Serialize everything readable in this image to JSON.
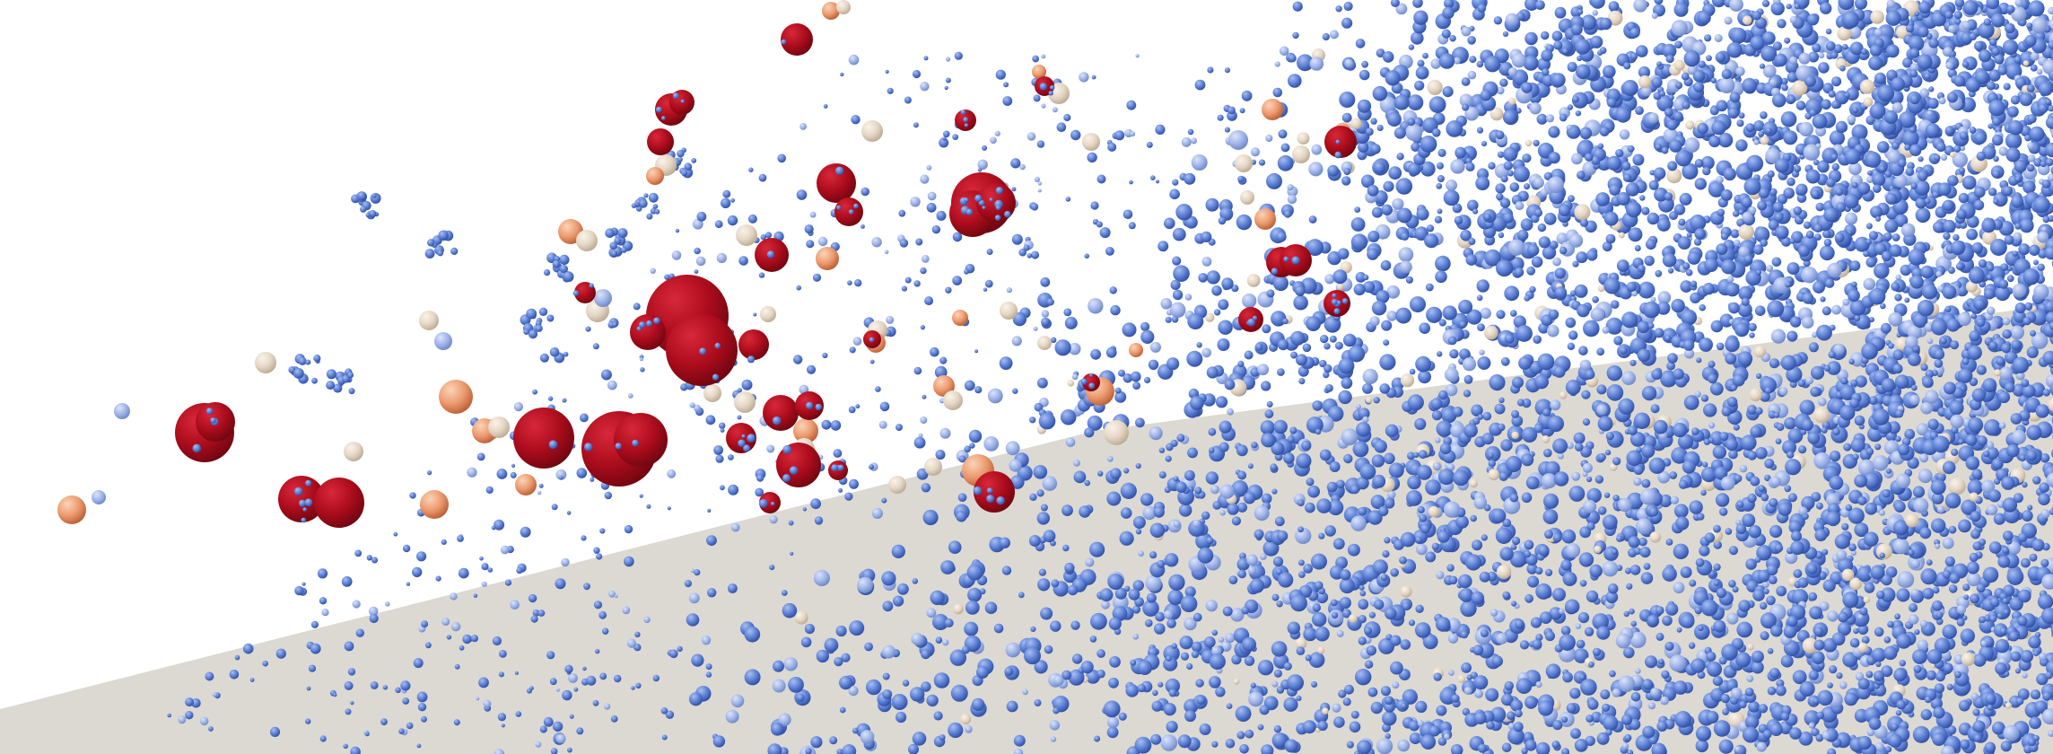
{
  "scene": {
    "description_free": true,
    "background_color": "#ffffff",
    "floor_color": "#dcd9d3",
    "palette": {
      "blue_dark": "#3d5fb8",
      "blue_mid": "#5a7ed6",
      "blue_light": "#8fa8e4",
      "pale_blue": "#b9c7e8",
      "beige": "#e8dccd",
      "peach": "#f0b48c",
      "orange": "#e07a4e",
      "red": "#b0101c",
      "red_dark": "#8c0a14"
    }
  }
}
